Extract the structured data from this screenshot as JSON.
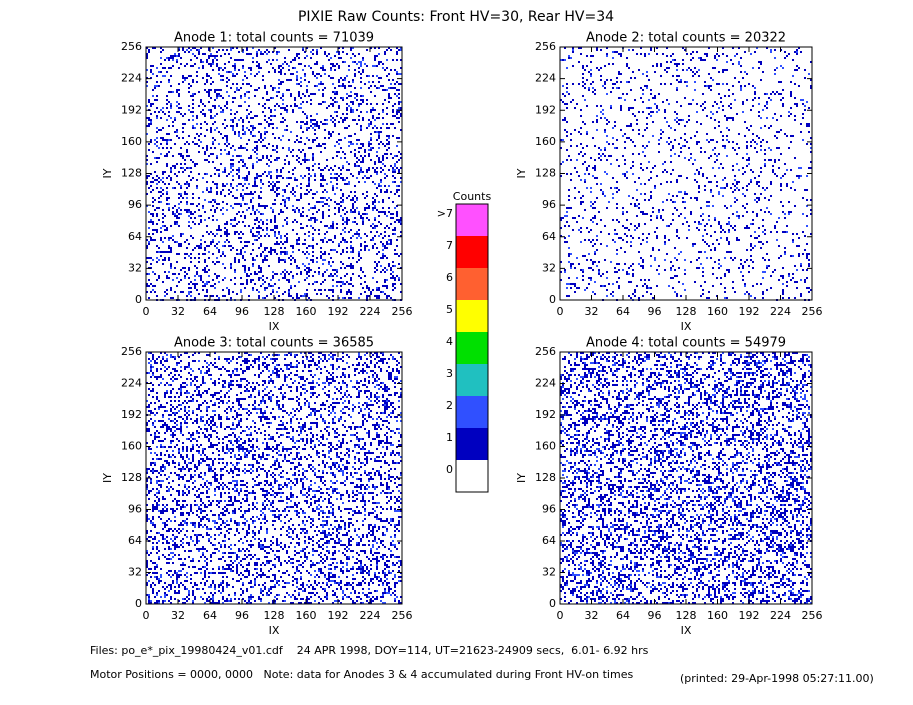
{
  "title": "PIXIE Raw Counts:  Front HV=30, Rear HV=34",
  "chart_data": [
    {
      "type": "heatmap",
      "title": "Anode 1: total counts = 71039",
      "xlabel": "IX",
      "ylabel": "IY",
      "xlim": [
        0,
        256
      ],
      "xticks": [
        0,
        32,
        64,
        96,
        128,
        160,
        192,
        224,
        256
      ],
      "ylim": [
        0,
        256
      ],
      "yticks": [
        0,
        32,
        64,
        96,
        128,
        160,
        192,
        224,
        256
      ]
    },
    {
      "type": "heatmap",
      "title": "Anode 2: total counts = 20322",
      "xlabel": "IX",
      "ylabel": "IY",
      "xlim": [
        0,
        256
      ],
      "xticks": [
        0,
        32,
        64,
        96,
        128,
        160,
        192,
        224,
        256
      ],
      "ylim": [
        0,
        256
      ],
      "yticks": [
        0,
        32,
        64,
        96,
        128,
        160,
        192,
        224,
        256
      ]
    },
    {
      "type": "heatmap",
      "title": "Anode 3: total counts = 36585",
      "xlabel": "IX",
      "ylabel": "IY",
      "xlim": [
        0,
        256
      ],
      "xticks": [
        0,
        32,
        64,
        96,
        128,
        160,
        192,
        224,
        256
      ],
      "ylim": [
        0,
        256
      ],
      "yticks": [
        0,
        32,
        64,
        96,
        128,
        160,
        192,
        224,
        256
      ]
    },
    {
      "type": "heatmap",
      "title": "Anode 4: total counts = 54979",
      "xlabel": "IX",
      "ylabel": "IY",
      "xlim": [
        0,
        256
      ],
      "xticks": [
        0,
        32,
        64,
        96,
        128,
        160,
        192,
        224,
        256
      ],
      "ylim": [
        0,
        256
      ],
      "yticks": [
        0,
        32,
        64,
        96,
        128,
        160,
        192,
        224,
        256
      ]
    }
  ],
  "colorbar": {
    "title": "Counts",
    "levels": [
      {
        "label": "0",
        "color": "#ffffff"
      },
      {
        "label": "1",
        "color": "#0000c0"
      },
      {
        "label": "2",
        "color": "#3050ff"
      },
      {
        "label": "3",
        "color": "#20c0c0"
      },
      {
        "label": "4",
        "color": "#00e000"
      },
      {
        "label": "5",
        "color": "#ffff00"
      },
      {
        "label": "6",
        "color": "#ff6030"
      },
      {
        "label": "7",
        "color": "#ff0000"
      },
      {
        "label": ">7",
        "color": "#ff50ff"
      }
    ]
  },
  "footer": {
    "files": "Files: po_e*_pix_19980424_v01.cdf    24 APR 1998, DOY=114, UT=21623-24909 secs,  6.01- 6.92 hrs",
    "motor": "Motor Positions = 0000, 0000   Note: data for Anodes 3 & 4 accumulated during Front HV-on times",
    "printed": "(printed: 29-Apr-1998 05:27:11.00)"
  }
}
